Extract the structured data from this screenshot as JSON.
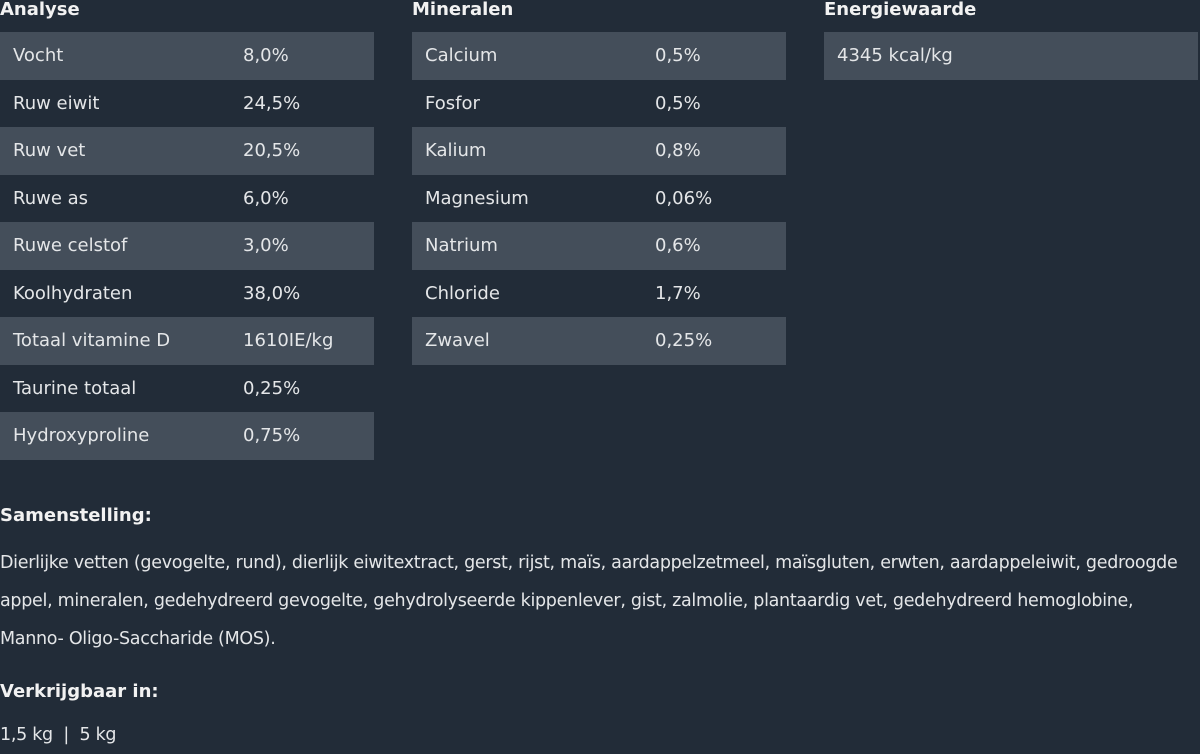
{
  "analyse": {
    "title": "Analyse",
    "rows": [
      [
        "Vocht",
        "8,0%"
      ],
      [
        "Ruw eiwit",
        "24,5%"
      ],
      [
        "Ruw vet",
        "20,5%"
      ],
      [
        "Ruwe as",
        "6,0%"
      ],
      [
        "Ruwe celstof",
        "3,0%"
      ],
      [
        "Koolhydraten",
        "38,0%"
      ],
      [
        "Totaal vitamine D",
        "1610IE/kg"
      ],
      [
        "Taurine totaal",
        "0,25%"
      ],
      [
        "Hydroxyproline",
        "0,75%"
      ]
    ]
  },
  "mineralen": {
    "title": "Mineralen",
    "rows": [
      [
        "Calcium",
        "0,5%"
      ],
      [
        "Fosfor",
        "0,5%"
      ],
      [
        "Kalium",
        "0,8%"
      ],
      [
        "Magnesium",
        "0,06%"
      ],
      [
        "Natrium",
        "0,6%"
      ],
      [
        "Chloride",
        "1,7%"
      ],
      [
        "Zwavel",
        "0,25%"
      ]
    ]
  },
  "energie": {
    "title": "Energiewaarde",
    "rows": [
      [
        "4345 kcal/kg",
        ""
      ]
    ]
  },
  "samenstelling": {
    "title": "Samenstelling:",
    "text": "Dierlijke vetten (gevogelte, rund), dierlijk eiwitextract, gerst, rijst, maïs, aardappelzetmeel, maïsgluten, erwten, aardappeleiwit, gedroogde appel, mineralen, gedehydreerd gevogelte, gehydrolyseerde kippenlever, gist, zalmolie, plantaardig vet, gedehydreerd hemoglobine, Manno- Oligo-Saccharide (MOS)."
  },
  "verkrijgbaar": {
    "title": "Verkrijgbaar in:",
    "text": "1,5 kg  |  5 kg"
  },
  "colors": {
    "background": "#222c38",
    "stripe": "#444e5a",
    "text": "#e4e6e8"
  }
}
